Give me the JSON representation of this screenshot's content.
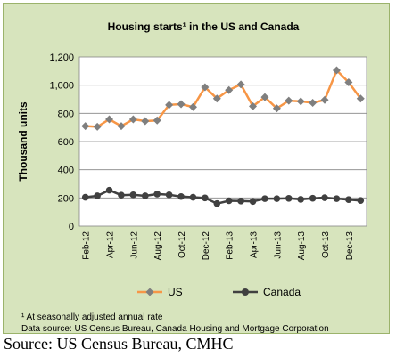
{
  "chart_data": {
    "type": "line",
    "title": "Housing starts¹ in the US and Canada",
    "ylabel": "Thousand units",
    "xlabel": "",
    "ylim": [
      0,
      1200
    ],
    "yticks": [
      0,
      200,
      400,
      600,
      800,
      1000,
      1200
    ],
    "ytick_labels": [
      "0",
      "200",
      "400",
      "600",
      "800",
      "1,000",
      "1,200"
    ],
    "grid": true,
    "legend_placement": "bottom",
    "x": [
      "Feb-12",
      "Mar-12",
      "Apr-12",
      "May-12",
      "Jun-12",
      "Jul-12",
      "Aug-12",
      "Sep-12",
      "Oct-12",
      "Nov-12",
      "Dec-12",
      "Jan-13",
      "Feb-13",
      "Mar-13",
      "Apr-13",
      "May-13",
      "Jun-13",
      "Jul-13",
      "Aug-13",
      "Sep-13",
      "Oct-13",
      "Nov-13",
      "Dec-13",
      "Jan-14"
    ],
    "xtick_labels": [
      "Feb-12",
      "Apr-12",
      "Jun-12",
      "Aug-12",
      "Oct-12",
      "Dec-12",
      "Feb-13",
      "Apr-13",
      "Jun-13",
      "Aug-13",
      "Oct-13",
      "Dec-13"
    ],
    "series": [
      {
        "name": "US",
        "color": "#f79646",
        "marker": "diamond",
        "marker_color": "#7f7f7f",
        "values": [
          710,
          705,
          758,
          710,
          758,
          745,
          750,
          860,
          865,
          845,
          985,
          905,
          965,
          1005,
          850,
          915,
          835,
          890,
          885,
          875,
          895,
          1105,
          1020,
          905
        ]
      },
      {
        "name": "Canada",
        "color": "#404040",
        "marker": "circle",
        "marker_color": "#404040",
        "values": [
          205,
          215,
          255,
          220,
          222,
          215,
          228,
          222,
          210,
          205,
          200,
          160,
          180,
          178,
          175,
          195,
          195,
          197,
          190,
          198,
          202,
          195,
          188,
          182
        ]
      }
    ]
  },
  "footnote_1": "¹ At seasonally adjusted annual rate",
  "footnote_2": "Data source: US Census Bureau, Canada Housing and Mortgage Corporation",
  "source": "Source: US Census Bureau, CMHC"
}
